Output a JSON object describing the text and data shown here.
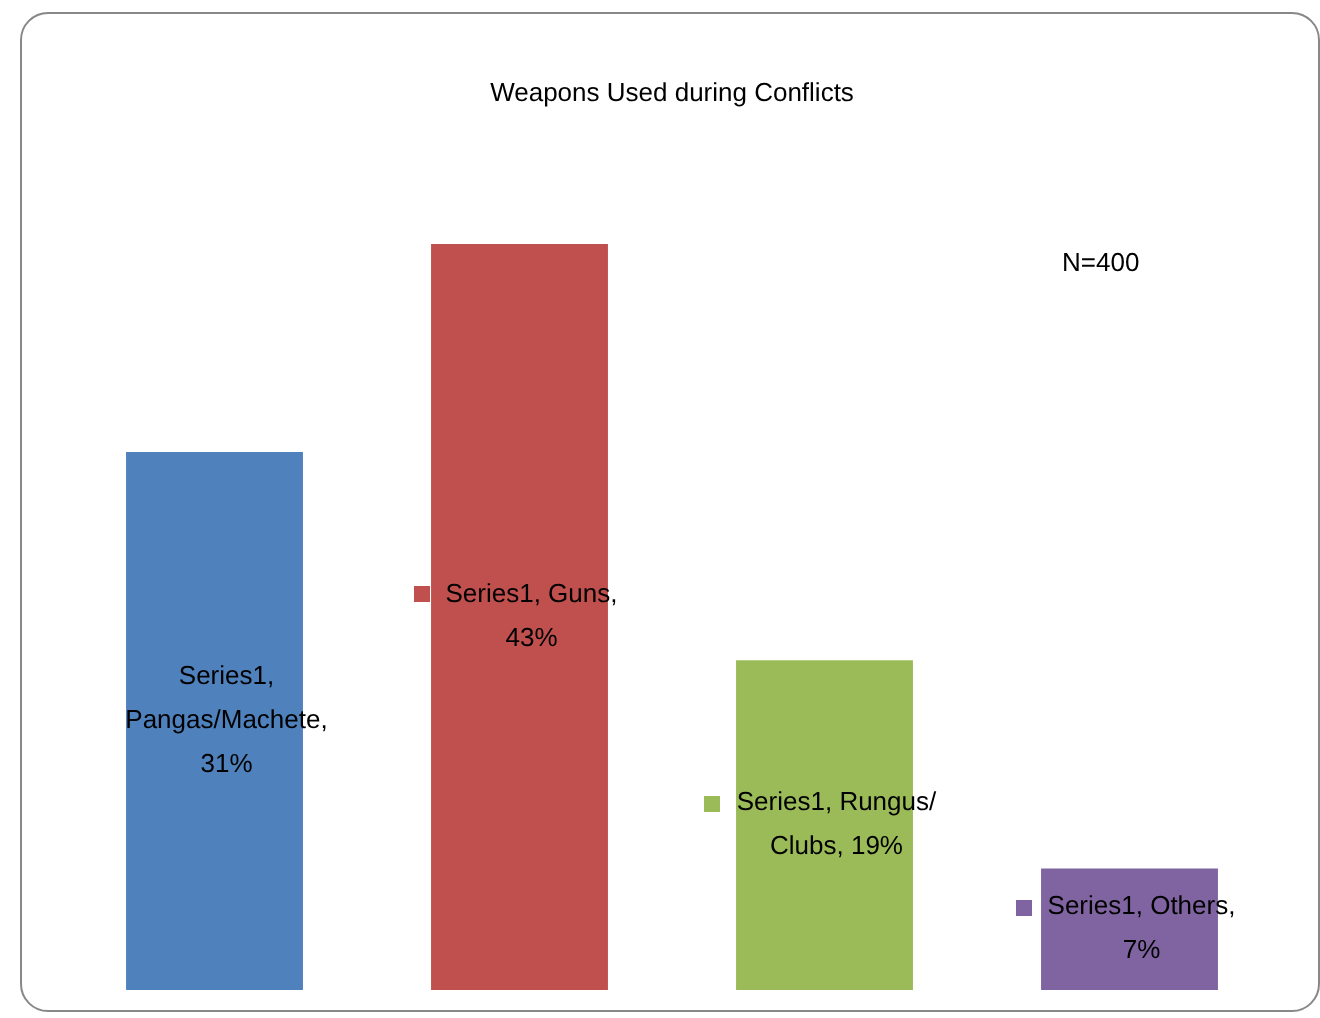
{
  "chart_data": {
    "type": "bar",
    "title": "Weapons Used during Conflicts",
    "categories": [
      null,
      null,
      null,
      null
    ],
    "series": [
      {
        "colors": [
          "#4f81bd",
          "#c0504d",
          "#9bbb59",
          "#8064a2"
        ],
        "values": [
          31,
          43,
          19,
          7
        ],
        "value_labels": [
          "Series1, Pangas/Machete, 31%",
          "Series1, Guns, 43%",
          "Series1, Rungus/ Clubs, 19%",
          "Series1, Others, 7%"
        ]
      }
    ],
    "annotations": [
      "N=400"
    ],
    "grid": false,
    "legend": false,
    "tick_labels": false
  }
}
